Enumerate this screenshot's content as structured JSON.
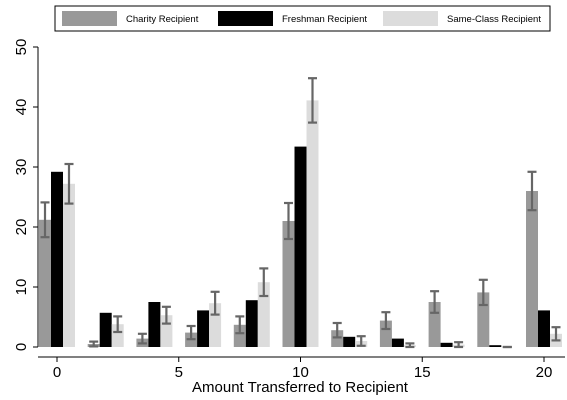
{
  "chart_data": {
    "type": "bar",
    "xlabel": "Amount Transferred to Recipient",
    "ylabel": "",
    "ylim": [
      0,
      50
    ],
    "yticks": [
      0,
      10,
      20,
      30,
      40,
      50
    ],
    "xticks": [
      0,
      5,
      10,
      15,
      20
    ],
    "grid": false,
    "legend_position": "top",
    "categories": [
      0,
      2,
      4,
      6,
      8,
      10,
      12,
      14,
      16,
      18,
      20
    ],
    "series": [
      {
        "name": "Charity Recipient",
        "color": "#999999",
        "values": [
          21.2,
          0.5,
          1.4,
          2.4,
          3.7,
          21.0,
          2.8,
          4.4,
          7.5,
          9.1,
          26.0
        ],
        "error": [
          2.9,
          0.4,
          0.8,
          1.1,
          1.4,
          3.0,
          1.2,
          1.4,
          1.8,
          2.1,
          3.2
        ]
      },
      {
        "name": "Freshman Recipient",
        "color": "#000000",
        "values": [
          29.2,
          5.7,
          7.5,
          6.1,
          7.8,
          33.4,
          1.7,
          1.4,
          0.7,
          0.3,
          6.1
        ]
      },
      {
        "name": "Same-Class Recipient",
        "color": "#dcdcdc",
        "values": [
          27.2,
          3.8,
          5.3,
          7.3,
          10.8,
          41.1,
          1.0,
          0.3,
          0.4,
          0.0,
          2.2
        ],
        "error": [
          3.3,
          1.3,
          1.4,
          1.9,
          2.3,
          3.7,
          0.8,
          0.3,
          0.4,
          0.0,
          1.1
        ]
      }
    ]
  }
}
